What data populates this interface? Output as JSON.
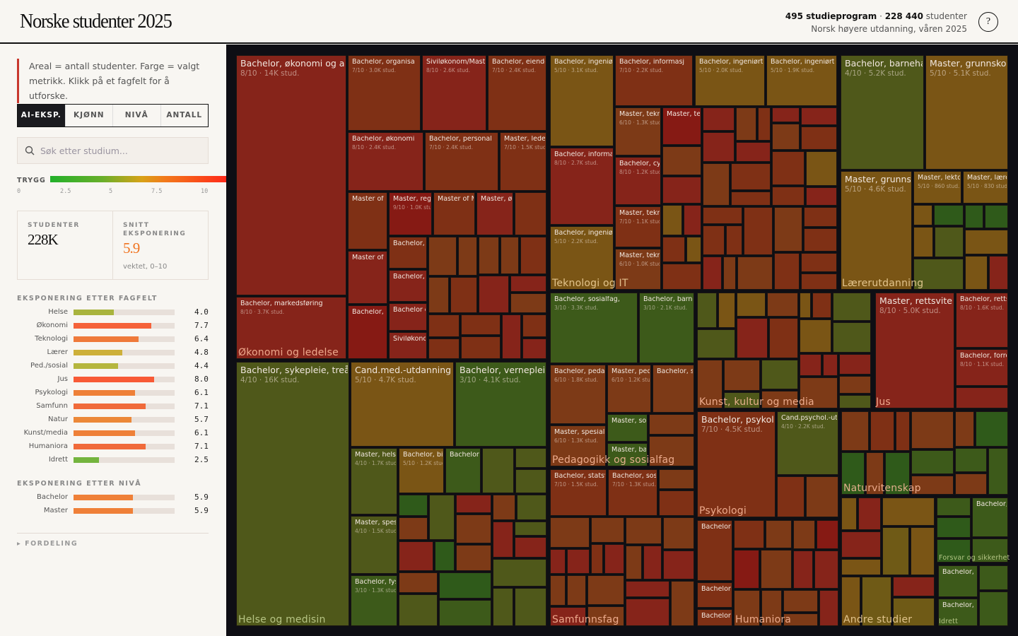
{
  "header": {
    "title": "Norske studenter 2025",
    "program_count": "495 studieprogram",
    "separator": " · ",
    "student_count": "228 440",
    "student_word": " studenter",
    "subtitle": "Norsk høyere utdanning, våren 2025",
    "help_label": "?"
  },
  "sidebar": {
    "note": "Areal = antall studenter. Farge = valgt metrikk. Klikk på et fagfelt for å utforske.",
    "tabs": [
      {
        "label": "AI-EKSP.",
        "active": true
      },
      {
        "label": "KJØNN",
        "active": false
      },
      {
        "label": "NIVÅ",
        "active": false
      },
      {
        "label": "ANTALL",
        "active": false
      }
    ],
    "search": {
      "placeholder": "Søk etter studium...",
      "value": ""
    },
    "legend": {
      "label": "TRYGG",
      "ticks": [
        "0",
        "2.5",
        "5",
        "7.5",
        "10"
      ]
    },
    "stats": {
      "students_label": "STUDENTER",
      "students_value": "228K",
      "exposure_label": "SNITT EKSPONERING",
      "exposure_value": "5.9",
      "exposure_sub": "vektet, 0–10"
    },
    "by_field_title": "EKSPONERING ETTER FAGFELT",
    "by_field": [
      {
        "label": "Helse",
        "value": "4.0",
        "color": "#a9b43e"
      },
      {
        "label": "Økonomi",
        "value": "7.7",
        "color": "#f5623a"
      },
      {
        "label": "Teknologi",
        "value": "6.4",
        "color": "#ef7a3a"
      },
      {
        "label": "Lærer",
        "value": "4.8",
        "color": "#cdb03a"
      },
      {
        "label": "Ped./sosial",
        "value": "4.4",
        "color": "#b5b63e"
      },
      {
        "label": "Jus",
        "value": "8.0",
        "color": "#f85a36"
      },
      {
        "label": "Psykologi",
        "value": "6.1",
        "color": "#ee8038"
      },
      {
        "label": "Samfunn",
        "value": "7.1",
        "color": "#f06a3a"
      },
      {
        "label": "Natur",
        "value": "5.7",
        "color": "#ec8838"
      },
      {
        "label": "Kunst/media",
        "value": "6.1",
        "color": "#ee8038"
      },
      {
        "label": "Humaniora",
        "value": "7.1",
        "color": "#f06a3a"
      },
      {
        "label": "Idrett",
        "value": "2.5",
        "color": "#74b43e"
      }
    ],
    "by_level_title": "EKSPONERING ETTER NIVÅ",
    "by_level": [
      {
        "label": "Bachelor",
        "value": "5.9",
        "color": "#ef8038"
      },
      {
        "label": "Master",
        "value": "5.9",
        "color": "#ef8038"
      }
    ],
    "fordeling_label": "▸ FORDELING"
  },
  "score_colors": {
    "3": "#3d5a1a",
    "4": "#4f581a",
    "5": "#7a5515",
    "6": "#7d3a17",
    "7": "#7f3015",
    "8": "#86241a",
    "9": "#861a14"
  },
  "treemap": {
    "fields": [
      {
        "label": "Økonomi og ledelse",
        "palette": [
          "#7f3015",
          "#86241a",
          "#7d3a17",
          "#7f3015"
        ],
        "tiles": [
          {
            "title": "Bachelor, økonomi og administrasjon",
            "sub": "8/10 · 14K stud.",
            "score": 8
          },
          {
            "title": "Bachelor, markedsføring",
            "sub": "8/10 · 3.7K stud.",
            "score": 8
          },
          {
            "title": "Bachelor, organisa",
            "sub": "7/10 · 3.0K stud.",
            "score": 7
          },
          {
            "title": "Siviløkonom/Master",
            "sub": "8/10 · 2.6K stud.",
            "score": 8
          },
          {
            "title": "Bachelor, eiendo",
            "sub": "7/10 · 2.4K stud.",
            "score": 7
          },
          {
            "title": "Bachelor, økonomi",
            "sub": "8/10 · 2.4K stud.",
            "score": 8
          },
          {
            "title": "Bachelor, personal",
            "sub": "7/10 · 2.4K stud.",
            "score": 7
          },
          {
            "title": "Master, ledel",
            "sub": "7/10 · 1.5K stud.",
            "score": 7
          },
          {
            "title": "Master of S",
            "sub": "",
            "score": 7
          },
          {
            "title": "Master, regi",
            "sub": "9/10 · 1.0K stud.",
            "score": 9
          },
          {
            "title": "Master of M",
            "sub": "",
            "score": 7
          },
          {
            "title": "Master, øk",
            "sub": "",
            "score": 8
          },
          {
            "title": "",
            "sub": "",
            "score": 7
          },
          {
            "title": "Master of B",
            "sub": "",
            "score": 8
          },
          {
            "title": "Bachelor, b",
            "sub": "",
            "score": 9
          },
          {
            "title": "Bachelor, l",
            "sub": "",
            "score": 7
          },
          {
            "title": "Bachelor, r",
            "sub": "",
            "score": 8
          },
          {
            "title": "Bachelor c",
            "sub": "",
            "score": 8
          },
          {
            "title": "Siviløkono",
            "sub": "",
            "score": 8
          }
        ]
      },
      {
        "label": "Teknologi og IT",
        "palette": [
          "#7f3015",
          "#86241a",
          "#7d3a17",
          "#7a5515",
          "#7f3015"
        ],
        "tiles": [
          {
            "title": "Bachelor, ingeniør",
            "sub": "5/10 · 3.1K stud.",
            "score": 5
          },
          {
            "title": "Bachelor, informat",
            "sub": "8/10 · 2.7K stud.",
            "score": 8
          },
          {
            "title": "Bachelor, ingeniør",
            "sub": "5/10 · 2.2K stud.",
            "score": 5
          },
          {
            "title": "Bachelor, informasj",
            "sub": "7/10 · 2.2K stud.",
            "score": 7
          },
          {
            "title": "Bachelor, ingeniørt",
            "sub": "5/10 · 2.0K stud.",
            "score": 5
          },
          {
            "title": "Bachelor, ingeniørt",
            "sub": "5/10 · 1.9K stud.",
            "score": 5
          },
          {
            "title": "Master, tekn",
            "sub": "6/10 · 1.3K stud.",
            "score": 6
          },
          {
            "title": "Master, te",
            "sub": "",
            "score": 9
          },
          {
            "title": "Bachelor, cyb",
            "sub": "8/10 · 1.2K stud.",
            "score": 8
          },
          {
            "title": "Master, tekn",
            "sub": "7/10 · 1.1K stud.",
            "score": 7
          },
          {
            "title": "Master, tekn",
            "sub": "6/10 · 1.0K stud.",
            "score": 6
          }
        ]
      },
      {
        "label": "Lærerutdanning",
        "palette": [
          "#7a5515",
          "#7d3a17",
          "#4f581a",
          "#86241a",
          "#7a5515",
          "#2f5a1a"
        ],
        "tiles": [
          {
            "title": "Bachelor, barnehag",
            "sub": "4/10 · 5.2K stud.",
            "score": 4
          },
          {
            "title": "Master, grunnskole",
            "sub": "5/10 · 5.1K stud.",
            "score": 5
          },
          {
            "title": "Master, grunnskole",
            "sub": "5/10 · 4.6K stud.",
            "score": 5
          },
          {
            "title": "Master, lekto",
            "sub": "5/10 · 860 stud.",
            "score": 5
          },
          {
            "title": "Master, lære",
            "sub": "5/10 · 830 stud.",
            "score": 5
          }
        ]
      },
      {
        "label": "Helse og medisin",
        "palette": [
          "#4f581a",
          "#3d5a1a",
          "#7a5515",
          "#2f5a1a",
          "#4f581a",
          "#7d3a17",
          "#86241a"
        ],
        "tiles": [
          {
            "title": "Bachelor, sykepleie, treårig",
            "sub": "4/10 · 16K stud.",
            "score": 4
          },
          {
            "title": "Cand.med.-utdanning",
            "sub": "5/10 · 4.7K stud.",
            "score": 5
          },
          {
            "title": "Bachelor, vernepleie",
            "sub": "3/10 · 4.1K stud.",
            "score": 3
          },
          {
            "title": "Master, helse",
            "sub": "4/10 · 1.7K stud.",
            "score": 4
          },
          {
            "title": "Master, spes",
            "sub": "4/10 · 1.5K stud.",
            "score": 4
          },
          {
            "title": "Bachelor, fys",
            "sub": "3/10 · 1.3K stud.",
            "score": 3
          },
          {
            "title": "Bachelor, bio",
            "sub": "5/10 · 1.2K stud.",
            "score": 5
          },
          {
            "title": "Bachelor,",
            "sub": "",
            "score": 3
          }
        ]
      },
      {
        "label": "Pedagogikk og sosialfag",
        "palette": [
          "#7a5515",
          "#3d5a1a",
          "#7d3a17",
          "#4f581a"
        ],
        "tiles": [
          {
            "title": "Bachelor, sosialfag,",
            "sub": "3/10 · 3.3K stud.",
            "score": 3
          },
          {
            "title": "Bachelor, barne",
            "sub": "3/10 · 2.1K stud.",
            "score": 3
          },
          {
            "title": "Bachelor, pedag",
            "sub": "6/10 · 1.8K stud.",
            "score": 6
          },
          {
            "title": "Master, ped",
            "sub": "6/10 · 1.2K stud.",
            "score": 6
          },
          {
            "title": "Bachelor, s",
            "sub": "",
            "score": 6
          },
          {
            "title": "Master, spesialp",
            "sub": "6/10 · 1.3K stud.",
            "score": 6
          },
          {
            "title": "Master, sos",
            "sub": "",
            "score": 3
          },
          {
            "title": "Master, bar",
            "sub": "",
            "score": 3
          }
        ]
      },
      {
        "label": "Kunst, kultur og media",
        "palette": [
          "#7d3a17",
          "#4f581a",
          "#86241a",
          "#7a5515",
          "#7f3015",
          "#4f581a"
        ],
        "tiles": []
      },
      {
        "label": "Jus",
        "palette": [
          "#86241a",
          "#7f3015",
          "#7d3a17"
        ],
        "tiles": [
          {
            "title": "Master, rettsvitenskap",
            "sub": "8/10 · 5.0K stud.",
            "score": 8
          },
          {
            "title": "Bachelor, retts",
            "sub": "8/10 · 1.6K stud.",
            "score": 8
          },
          {
            "title": "Bachelor, forre",
            "sub": "8/10 · 1.1K stud.",
            "score": 8
          }
        ]
      },
      {
        "label": "Psykologi",
        "palette": [
          "#7d3a17",
          "#7f3015"
        ],
        "tiles": [
          {
            "title": "Bachelor, psykologi",
            "sub": "7/10 · 4.5K stud.",
            "score": 7
          },
          {
            "title": "Cand.psychol.-utd",
            "sub": "4/10 · 2.2K stud.",
            "score": 4
          }
        ]
      },
      {
        "label": "Naturvitenskap",
        "palette": [
          "#7d3a17",
          "#7f3015",
          "#3d5a1a",
          "#86241a",
          "#7d3a17",
          "#2f5a1a"
        ],
        "tiles": []
      },
      {
        "label": "Samfunnsfag",
        "palette": [
          "#7d3a17",
          "#7f3015",
          "#86241a",
          "#7d3a17"
        ],
        "tiles": [
          {
            "title": "Bachelor, statsv",
            "sub": "7/10 · 1.5K stud.",
            "score": 7
          },
          {
            "title": "Bachelor, sosi",
            "sub": "7/10 · 1.3K stud.",
            "score": 7
          }
        ]
      },
      {
        "label": "Humaniora",
        "palette": [
          "#7f3015",
          "#86241a",
          "#7d3a17",
          "#861a14"
        ],
        "tiles": [
          {
            "title": "Bachelor,",
            "sub": "",
            "score": 7
          },
          {
            "title": "Bachelor,",
            "sub": "",
            "score": 7
          },
          {
            "title": "Bachelor,",
            "sub": "",
            "score": 7
          }
        ]
      },
      {
        "label": "Andre studier",
        "palette": [
          "#7a5515",
          "#7a5515",
          "#6f5a16",
          "#86241a"
        ],
        "tiles": []
      },
      {
        "label": "Forsvar og sikkerhet",
        "palette": [
          "#3d5a1a",
          "#2f5a1a"
        ],
        "tiles": [
          {
            "title": "Bachelor,",
            "sub": "",
            "score": 3
          }
        ]
      },
      {
        "label": "Idrett",
        "palette": [
          "#2f5a1a",
          "#3d5a1a",
          "#86241a"
        ],
        "tiles": [
          {
            "title": "Bachelor, i",
            "sub": "",
            "score": 3
          },
          {
            "title": "Bachelor, i",
            "sub": "",
            "score": 3
          }
        ]
      }
    ]
  }
}
